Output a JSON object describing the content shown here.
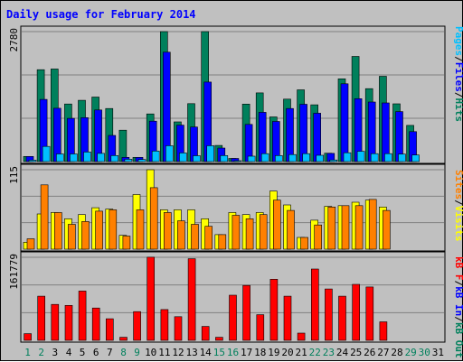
{
  "title": "Daily usage for February 2014",
  "colors": {
    "background": "#c0c0c0",
    "plot_bg": "#c0c0c0",
    "hits": "#00805c",
    "files": "#0000ff",
    "pages": "#00c0ff",
    "visits": "#ffff00",
    "sites": "#ff8000",
    "kb_in": "#ff0000",
    "title": "#0000ff",
    "weekday_label": "#000000",
    "weekend_label": "#00805c"
  },
  "legends": {
    "top": [
      {
        "text": "Hits",
        "color": "#00805c"
      },
      {
        "text": "/",
        "color": "#000000"
      },
      {
        "text": "Files",
        "color": "#0000ff"
      },
      {
        "text": "/",
        "color": "#000000"
      },
      {
        "text": "Pages",
        "color": "#00c0ff"
      }
    ],
    "middle": [
      {
        "text": "Visits",
        "color": "#ffff00"
      },
      {
        "text": "/",
        "color": "#000000"
      },
      {
        "text": "Sites",
        "color": "#ff8000"
      }
    ],
    "bottom": [
      {
        "text": "kB Out",
        "color": "#00805c"
      },
      {
        "text": "/",
        "color": "#000000"
      },
      {
        "text": "kB In",
        "color": "#0000ff"
      },
      {
        "text": "/",
        "color": "#000000"
      },
      {
        "text": "kB F",
        "color": "#ff0000"
      }
    ]
  },
  "chart_data": [
    {
      "type": "bar",
      "panel": "hits-files-pages",
      "ymax_label": "2780",
      "ylim": [
        0,
        2780
      ],
      "categories": [
        "1",
        "2",
        "3",
        "4",
        "5",
        "6",
        "7",
        "8",
        "9",
        "10",
        "11",
        "12",
        "13",
        "14",
        "15",
        "16",
        "17",
        "18",
        "19",
        "20",
        "21",
        "22",
        "23",
        "24",
        "25",
        "26",
        "27",
        "28",
        "29",
        "30",
        "31"
      ],
      "weekend": [
        "1",
        "2",
        "8",
        "9",
        "15",
        "16",
        "22",
        "23",
        "29",
        "30"
      ],
      "series": [
        {
          "name": "Hits",
          "key": "hits",
          "values": [
            110,
            1965,
            1980,
            1232,
            1310,
            1380,
            1136,
            672,
            90,
            1020,
            2780,
            850,
            1240,
            2780,
            345,
            68,
            1230,
            1470,
            955,
            1335,
            1535,
            1215,
            180,
            1770,
            2250,
            1560,
            1825,
            1235,
            775,
            0,
            0
          ]
        },
        {
          "name": "Files",
          "key": "files",
          "values": [
            110,
            1330,
            1140,
            925,
            940,
            1105,
            560,
            90,
            90,
            865,
            2340,
            780,
            740,
            1700,
            290,
            68,
            795,
            1055,
            860,
            1135,
            1225,
            1035,
            175,
            1665,
            1345,
            1275,
            1255,
            1070,
            640,
            0,
            0
          ]
        },
        {
          "name": "Pages",
          "key": "pages",
          "values": [
            30,
            325,
            165,
            165,
            205,
            175,
            130,
            50,
            45,
            225,
            340,
            185,
            125,
            340,
            130,
            20,
            115,
            170,
            130,
            150,
            170,
            135,
            35,
            190,
            220,
            170,
            170,
            160,
            140,
            0,
            0
          ]
        }
      ]
    },
    {
      "type": "bar",
      "panel": "visits-sites",
      "ymax_label": "115",
      "ylim": [
        0,
        115
      ],
      "categories": [
        "1",
        "2",
        "3",
        "4",
        "5",
        "6",
        "7",
        "8",
        "9",
        "10",
        "11",
        "12",
        "13",
        "14",
        "15",
        "16",
        "17",
        "18",
        "19",
        "20",
        "21",
        "22",
        "23",
        "24",
        "25",
        "26",
        "27",
        "28",
        "29",
        "30",
        "31"
      ],
      "series": [
        {
          "name": "Visits",
          "key": "visits",
          "values": [
            10,
            51,
            53,
            44,
            50,
            60,
            58,
            20,
            79,
            115,
            57,
            57,
            57,
            44,
            21,
            53,
            50,
            53,
            84,
            64,
            17,
            42,
            62,
            63,
            68,
            71,
            61,
            0,
            0,
            0,
            0
          ]
        },
        {
          "name": "Sites",
          "key": "sites",
          "values": [
            15,
            93,
            53,
            36,
            40,
            55,
            57,
            19,
            57,
            89,
            53,
            41,
            36,
            33,
            21,
            49,
            44,
            50,
            71,
            56,
            17,
            35,
            61,
            63,
            63,
            72,
            56,
            0,
            0,
            0,
            0
          ]
        }
      ]
    },
    {
      "type": "bar",
      "panel": "kb",
      "ymax_label": "161779",
      "ylim": [
        0,
        161779
      ],
      "categories": [
        "1",
        "2",
        "3",
        "4",
        "5",
        "6",
        "7",
        "8",
        "9",
        "10",
        "11",
        "12",
        "13",
        "14",
        "15",
        "16",
        "17",
        "18",
        "19",
        "20",
        "21",
        "22",
        "23",
        "24",
        "25",
        "26",
        "27",
        "28",
        "29",
        "30",
        "31"
      ],
      "series": [
        {
          "name": "kB F",
          "key": "kb_in",
          "values": [
            13000,
            86000,
            70000,
            68000,
            96000,
            63000,
            42000,
            6000,
            56000,
            162000,
            60000,
            46000,
            159000,
            27000,
            6000,
            88000,
            107000,
            50000,
            119000,
            86000,
            14000,
            139000,
            100000,
            86000,
            109000,
            104000,
            36000,
            0,
            0,
            0,
            0
          ]
        }
      ]
    }
  ]
}
